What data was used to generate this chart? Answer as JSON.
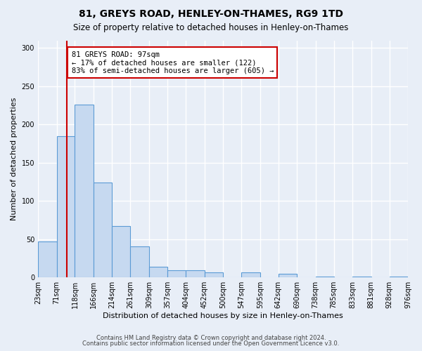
{
  "title": "81, GREYS ROAD, HENLEY-ON-THAMES, RG9 1TD",
  "subtitle": "Size of property relative to detached houses in Henley-on-Thames",
  "xlabel": "Distribution of detached houses by size in Henley-on-Thames",
  "ylabel": "Number of detached properties",
  "bar_values": [
    47,
    185,
    226,
    124,
    67,
    41,
    14,
    9,
    9,
    7,
    0,
    7,
    0,
    5,
    0,
    1,
    0,
    1,
    0,
    1
  ],
  "bin_labels": [
    "23sqm",
    "71sqm",
    "118sqm",
    "166sqm",
    "214sqm",
    "261sqm",
    "309sqm",
    "357sqm",
    "404sqm",
    "452sqm",
    "500sqm",
    "547sqm",
    "595sqm",
    "642sqm",
    "690sqm",
    "738sqm",
    "785sqm",
    "833sqm",
    "881sqm",
    "928sqm",
    "976sqm"
  ],
  "bar_color": "#c6d9f0",
  "bar_edge_color": "#5b9bd5",
  "property_line_x": 97,
  "bin_edges": [
    23,
    71,
    118,
    166,
    214,
    261,
    309,
    357,
    404,
    452,
    500,
    547,
    595,
    642,
    690,
    738,
    785,
    833,
    881,
    928,
    976
  ],
  "red_line_color": "#cc0000",
  "annotation_text": "81 GREYS ROAD: 97sqm\n← 17% of detached houses are smaller (122)\n83% of semi-detached houses are larger (605) →",
  "annotation_box_color": "#ffffff",
  "annotation_box_edge": "#cc0000",
  "ylim": [
    0,
    310
  ],
  "yticks": [
    0,
    50,
    100,
    150,
    200,
    250,
    300
  ],
  "footer1": "Contains HM Land Registry data © Crown copyright and database right 2024.",
  "footer2": "Contains public sector information licensed under the Open Government Licence v3.0.",
  "bg_color": "#e8eef7",
  "plot_bg_color": "#e8eef7"
}
